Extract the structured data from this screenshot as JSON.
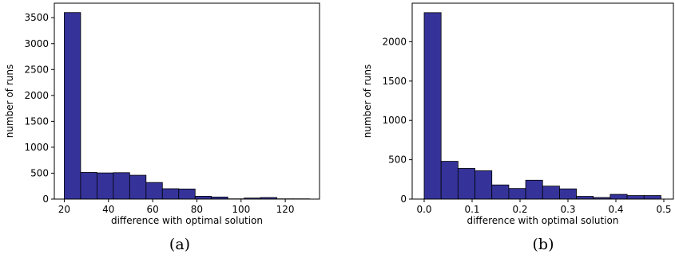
{
  "colors": {
    "bar_fill": "#35339a",
    "bar_edge": "#000000",
    "axis": "#000000"
  },
  "panels": [
    {
      "caption": "(a)",
      "chart_data": {
        "type": "bar",
        "title": "",
        "xlabel": "difference with optimal solution",
        "ylabel": "number of runs",
        "bin_edges": [
          20,
          27.4,
          34.8,
          42.2,
          49.6,
          57,
          64.4,
          71.8,
          79.2,
          86.6,
          94,
          101.4,
          108.8,
          116.2,
          123.6,
          131
        ],
        "values": [
          3600,
          515,
          505,
          510,
          460,
          320,
          200,
          195,
          55,
          40,
          5,
          20,
          30,
          5,
          5
        ],
        "xlim": [
          15.5,
          135.5
        ],
        "ylim": [
          0,
          3780
        ],
        "xticks": [
          20,
          40,
          60,
          80,
          100,
          120
        ],
        "yticks": [
          0,
          500,
          1000,
          1500,
          2000,
          2500,
          3000,
          3500
        ],
        "xtick_labels": [
          "20",
          "40",
          "60",
          "80",
          "100",
          "120"
        ],
        "ytick_labels": [
          "0",
          "500",
          "1000",
          "1500",
          "2000",
          "2500",
          "3000",
          "3500"
        ],
        "grid": false
      }
    },
    {
      "caption": "(b)",
      "chart_data": {
        "type": "bar",
        "title": "",
        "xlabel": "difference with optimal solution",
        "ylabel": "number of runs",
        "bin_edges": [
          0,
          0.0353,
          0.0706,
          0.1059,
          0.1412,
          0.1765,
          0.2118,
          0.2471,
          0.2824,
          0.3176,
          0.3529,
          0.3882,
          0.4235,
          0.4588,
          0.4941
        ],
        "values": [
          2370,
          480,
          390,
          360,
          180,
          135,
          240,
          165,
          130,
          35,
          20,
          60,
          45,
          45
        ],
        "xlim": [
          -0.025,
          0.52
        ],
        "ylim": [
          0,
          2490
        ],
        "xticks": [
          0,
          0.1,
          0.2,
          0.3,
          0.4,
          0.5
        ],
        "yticks": [
          0,
          500,
          1000,
          1500,
          2000
        ],
        "xtick_labels": [
          "0.0",
          "0.1",
          "0.2",
          "0.3",
          "0.4",
          "0.5"
        ],
        "ytick_labels": [
          "0",
          "500",
          "1000",
          "1500",
          "2000"
        ],
        "grid": false
      }
    }
  ]
}
